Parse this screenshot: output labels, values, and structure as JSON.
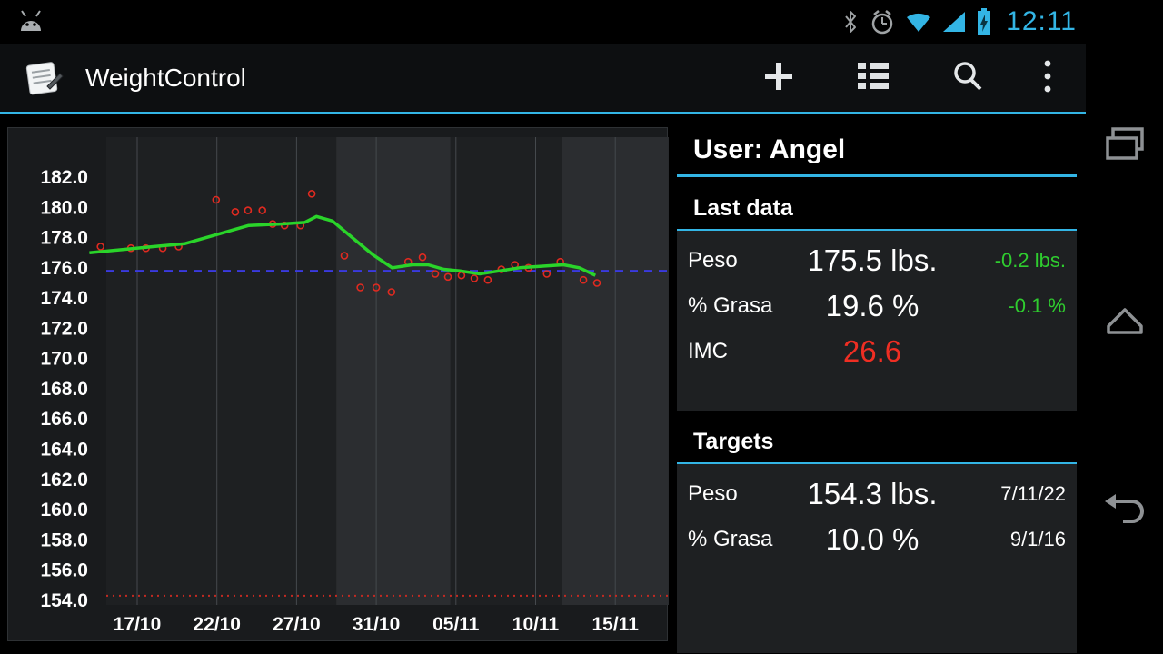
{
  "colors": {
    "accent": "#33b5e5",
    "positive_green": "#2fcc2f",
    "alert_red": "#ef2e23"
  },
  "status_bar": {
    "time": "12:11",
    "icons": [
      "android-notification",
      "bluetooth",
      "alarm",
      "wifi",
      "signal",
      "battery-charging"
    ]
  },
  "action_bar": {
    "title": "WeightControl",
    "actions": [
      "add",
      "list",
      "search",
      "overflow-menu"
    ]
  },
  "nav_bar": {
    "buttons": [
      "recents",
      "home",
      "back"
    ]
  },
  "info_panel": {
    "user_header": "User: Angel",
    "last_data": {
      "title": "Last data",
      "rows": [
        {
          "label": "Peso",
          "value": "175.5 lbs.",
          "delta": "-0.2 lbs."
        },
        {
          "label": "% Grasa",
          "value": "19.6 %",
          "delta": "-0.1 %"
        },
        {
          "label": "IMC",
          "value": "26.6",
          "delta": ""
        }
      ]
    },
    "targets": {
      "title": "Targets",
      "rows": [
        {
          "label": "Peso",
          "value": "154.3 lbs.",
          "date": "7/11/22"
        },
        {
          "label": "% Grasa",
          "value": "10.0 %",
          "date": "9/1/16"
        }
      ]
    }
  },
  "chart_data": {
    "type": "scatter",
    "title": "",
    "x_unit": "tick index (0 = 17/10, 1 = 22/10, ... 6 = 15/11)",
    "x_tick_labels": [
      "17/10",
      "22/10",
      "27/10",
      "31/10",
      "05/11",
      "10/11",
      "15/11"
    ],
    "y_tick_labels": [
      "182.0",
      "180.0",
      "178.0",
      "176.0",
      "174.0",
      "172.0",
      "170.0",
      "168.0",
      "166.0",
      "164.0",
      "162.0",
      "160.0",
      "158.0",
      "156.0",
      "154.0"
    ],
    "ylim": [
      153.4,
      184.7
    ],
    "xlim": [
      -0.62,
      6.67
    ],
    "grid": "vertical-only",
    "legend": "none",
    "bands": [
      [
        2.5,
        3.93
      ],
      [
        5.33,
        6.67
      ]
    ],
    "reference_lines": [
      {
        "name": "current-average-level",
        "value": 175.8,
        "style": "dashed",
        "color": "#3a3ae0"
      },
      {
        "name": "target-weight",
        "value": 154.3,
        "style": "dotted",
        "color": "#c22a22"
      }
    ],
    "series": [
      {
        "name": "weight-measurements",
        "type": "scatter",
        "color": "#e02a20",
        "points": [
          [
            -0.46,
            177.4
          ],
          [
            -0.08,
            177.3
          ],
          [
            0.11,
            177.3
          ],
          [
            0.32,
            177.3
          ],
          [
            0.52,
            177.4
          ],
          [
            0.99,
            180.5
          ],
          [
            1.23,
            179.7
          ],
          [
            1.39,
            179.8
          ],
          [
            1.57,
            179.8
          ],
          [
            1.7,
            178.9
          ],
          [
            1.85,
            178.8
          ],
          [
            2.05,
            178.8
          ],
          [
            2.19,
            180.9
          ],
          [
            2.6,
            176.8
          ],
          [
            2.8,
            174.7
          ],
          [
            3.0,
            174.7
          ],
          [
            3.19,
            174.4
          ],
          [
            3.4,
            176.4
          ],
          [
            3.58,
            176.7
          ],
          [
            3.74,
            175.6
          ],
          [
            3.9,
            175.4
          ],
          [
            4.07,
            175.5
          ],
          [
            4.23,
            175.3
          ],
          [
            4.4,
            175.2
          ],
          [
            4.57,
            175.9
          ],
          [
            4.74,
            176.2
          ],
          [
            4.91,
            176.0
          ],
          [
            5.14,
            175.6
          ],
          [
            5.31,
            176.4
          ],
          [
            5.6,
            175.2
          ],
          [
            5.77,
            175.0
          ]
        ]
      },
      {
        "name": "weight-trend",
        "type": "line",
        "color": "#2ad42a",
        "points": [
          [
            -0.6,
            177.0
          ],
          [
            -0.2,
            177.2
          ],
          [
            0.2,
            177.4
          ],
          [
            0.6,
            177.6
          ],
          [
            1.0,
            178.2
          ],
          [
            1.4,
            178.8
          ],
          [
            1.8,
            178.9
          ],
          [
            2.1,
            179.0
          ],
          [
            2.25,
            179.4
          ],
          [
            2.45,
            179.1
          ],
          [
            2.7,
            178.0
          ],
          [
            2.95,
            176.9
          ],
          [
            3.2,
            176.0
          ],
          [
            3.45,
            176.2
          ],
          [
            3.65,
            176.2
          ],
          [
            3.85,
            175.9
          ],
          [
            4.05,
            175.8
          ],
          [
            4.3,
            175.6
          ],
          [
            4.55,
            175.8
          ],
          [
            4.8,
            176.0
          ],
          [
            5.05,
            176.1
          ],
          [
            5.35,
            176.2
          ],
          [
            5.55,
            176.0
          ],
          [
            5.75,
            175.5
          ]
        ]
      }
    ],
    "style_colors": {
      "panel_bg": "#191b1d",
      "plot_bg": "#1e2022",
      "band": "#2b2d30",
      "grid": "#45494d",
      "tick_text": "#ffffff"
    }
  }
}
